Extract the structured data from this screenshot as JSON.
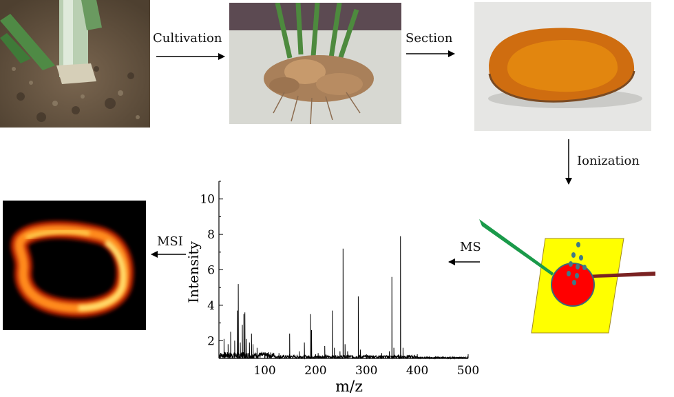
{
  "steps": {
    "cultivation": "Cultivation",
    "section": "Section",
    "ionization": "Ionization",
    "ms": "MS",
    "msi": "MSI"
  },
  "chart_data": {
    "type": "line",
    "xlabel": "m/z",
    "ylabel": "Intensity",
    "xlim": [
      10,
      500
    ],
    "ylim": [
      1,
      11
    ],
    "xticks": [
      100,
      200,
      300,
      400,
      500
    ],
    "yticks": [
      2,
      4,
      6,
      8,
      10
    ],
    "baseline": 1.0,
    "peaks": [
      {
        "x": 20,
        "y": 2.1
      },
      {
        "x": 28,
        "y": 1.8
      },
      {
        "x": 33,
        "y": 2.5
      },
      {
        "x": 41,
        "y": 2.0
      },
      {
        "x": 46,
        "y": 3.7
      },
      {
        "x": 48,
        "y": 5.2
      },
      {
        "x": 52,
        "y": 1.9
      },
      {
        "x": 56,
        "y": 2.9
      },
      {
        "x": 59,
        "y": 3.5
      },
      {
        "x": 61,
        "y": 3.6
      },
      {
        "x": 64,
        "y": 2.1
      },
      {
        "x": 70,
        "y": 1.9
      },
      {
        "x": 74,
        "y": 2.4
      },
      {
        "x": 77,
        "y": 1.8
      },
      {
        "x": 85,
        "y": 1.6
      },
      {
        "x": 105,
        "y": 1.2
      },
      {
        "x": 128,
        "y": 1.3
      },
      {
        "x": 149,
        "y": 2.4
      },
      {
        "x": 168,
        "y": 1.4
      },
      {
        "x": 178,
        "y": 1.9
      },
      {
        "x": 190,
        "y": 3.5
      },
      {
        "x": 192,
        "y": 2.6
      },
      {
        "x": 205,
        "y": 1.3
      },
      {
        "x": 218,
        "y": 1.7
      },
      {
        "x": 233,
        "y": 3.7
      },
      {
        "x": 237,
        "y": 1.6
      },
      {
        "x": 248,
        "y": 1.4
      },
      {
        "x": 254,
        "y": 7.2
      },
      {
        "x": 258,
        "y": 1.8
      },
      {
        "x": 263,
        "y": 1.4
      },
      {
        "x": 284,
        "y": 4.5
      },
      {
        "x": 288,
        "y": 1.5
      },
      {
        "x": 330,
        "y": 1.3
      },
      {
        "x": 345,
        "y": 1.4
      },
      {
        "x": 350,
        "y": 5.6
      },
      {
        "x": 354,
        "y": 1.6
      },
      {
        "x": 367,
        "y": 7.9
      },
      {
        "x": 372,
        "y": 1.6
      },
      {
        "x": 380,
        "y": 1.2
      },
      {
        "x": 420,
        "y": 1.1
      },
      {
        "x": 465,
        "y": 1.1
      }
    ]
  }
}
